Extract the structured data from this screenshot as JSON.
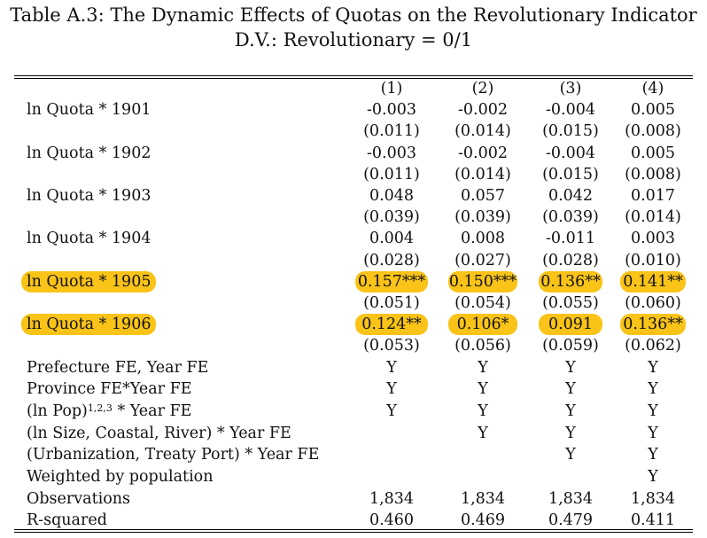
{
  "title": "Table A.3: The Dynamic Effects of Quotas on the Revolutionary Indicator",
  "subtitle": "D.V.: Revolutionary = 0/1",
  "columns": [
    "(1)",
    "(2)",
    "(3)",
    "(4)"
  ],
  "highlight_color": "#f9c318",
  "coef_rows": [
    {
      "label": "ln Quota * 1901",
      "coefs": [
        "-0.003",
        "-0.002",
        "-0.004",
        "0.005"
      ],
      "ses": [
        "(0.011)",
        "(0.014)",
        "(0.015)",
        "(0.008)"
      ],
      "highlighted": false
    },
    {
      "label": "ln Quota * 1902",
      "coefs": [
        "-0.003",
        "-0.002",
        "-0.004",
        "0.005"
      ],
      "ses": [
        "(0.011)",
        "(0.014)",
        "(0.015)",
        "(0.008)"
      ],
      "highlighted": false
    },
    {
      "label": "ln Quota * 1903",
      "coefs": [
        "0.048",
        "0.057",
        "0.042",
        "0.017"
      ],
      "ses": [
        "(0.039)",
        "(0.039)",
        "(0.039)",
        "(0.014)"
      ],
      "highlighted": false
    },
    {
      "label": "ln Quota * 1904",
      "coefs": [
        "0.004",
        "0.008",
        "-0.011",
        "0.003"
      ],
      "ses": [
        "(0.028)",
        "(0.027)",
        "(0.028)",
        "(0.010)"
      ],
      "highlighted": false
    },
    {
      "label": "ln Quota * 1905",
      "coefs": [
        "0.157***",
        "0.150***",
        "0.136**",
        "0.141**"
      ],
      "ses": [
        "(0.051)",
        "(0.054)",
        "(0.055)",
        "(0.060)"
      ],
      "highlighted": true
    },
    {
      "label": "ln Quota * 1906",
      "coefs": [
        "0.124**",
        "0.106*",
        "0.091",
        "0.136**"
      ],
      "ses": [
        "(0.053)",
        "(0.056)",
        "(0.059)",
        "(0.062)"
      ],
      "highlighted": true
    }
  ],
  "fe_rows": [
    {
      "label": "Prefecture FE, Year FE",
      "label_sup": "",
      "label_suffix": "",
      "values": [
        "Y",
        "Y",
        "Y",
        "Y"
      ]
    },
    {
      "label": "Province FE*Year FE",
      "label_sup": "",
      "label_suffix": "",
      "values": [
        "Y",
        "Y",
        "Y",
        "Y"
      ]
    },
    {
      "label": "(ln Pop)",
      "label_sup": "1,2,3",
      "label_suffix": " * Year FE",
      "values": [
        "Y",
        "Y",
        "Y",
        "Y"
      ]
    },
    {
      "label": "(ln Size, Coastal, River) * Year FE",
      "label_sup": "",
      "label_suffix": "",
      "values": [
        "",
        "Y",
        "Y",
        "Y"
      ]
    },
    {
      "label": "(Urbanization, Treaty Port) * Year FE",
      "label_sup": "",
      "label_suffix": "",
      "values": [
        "",
        "",
        "Y",
        "Y"
      ]
    },
    {
      "label": "Weighted by population",
      "label_sup": "",
      "label_suffix": "",
      "values": [
        "",
        "",
        "",
        "Y"
      ]
    },
    {
      "label": "Observations",
      "label_sup": "",
      "label_suffix": "",
      "values": [
        "1,834",
        "1,834",
        "1,834",
        "1,834"
      ]
    },
    {
      "label": "R-squared",
      "label_sup": "",
      "label_suffix": "",
      "values": [
        "0.460",
        "0.469",
        "0.479",
        "0.411"
      ]
    }
  ]
}
